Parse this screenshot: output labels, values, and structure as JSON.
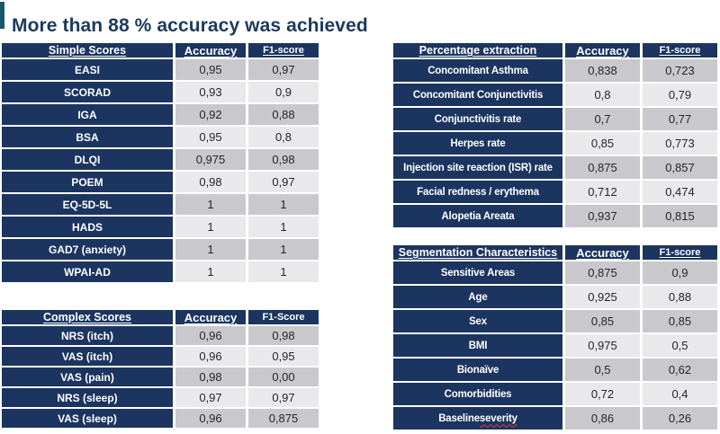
{
  "title": {
    "text": "More than 88 % accuracy was achieved"
  },
  "colors": {
    "navy": "#1c3560",
    "accent_bar": "#15586d",
    "title_text": "#1c3a5e",
    "cell_dark": "#c9c9cd",
    "cell_light": "#e9e9ec",
    "value_text": "#262626",
    "spellcheck_underline": "#e03c31"
  },
  "tables": [
    {
      "name": "Simple Scores",
      "accuracy_header": "Accuracy",
      "f1_header": "F1-score",
      "rows": [
        {
          "label": "EASI",
          "acc": "0,95",
          "f1": "0,97"
        },
        {
          "label": "SCORAD",
          "acc": "0,93",
          "f1": "0,9"
        },
        {
          "label": "IGA",
          "acc": "0,92",
          "f1": "0,88"
        },
        {
          "label": "BSA",
          "acc": "0,95",
          "f1": "0,8"
        },
        {
          "label": "DLQI",
          "acc": "0,975",
          "f1": "0,98"
        },
        {
          "label": "POEM",
          "acc": "0,98",
          "f1": "0,97"
        },
        {
          "label": "EQ-5D-5L",
          "acc": "1",
          "f1": "1"
        },
        {
          "label": "HADS",
          "acc": "1",
          "f1": "1"
        },
        {
          "label": "GAD7 (anxiety)",
          "acc": "1",
          "f1": "1"
        },
        {
          "label": "WPAI-AD",
          "acc": "1",
          "f1": "1"
        }
      ]
    },
    {
      "name": "Complex Scores",
      "accuracy_header": "Accuracy",
      "f1_header": "F1-Score",
      "rows": [
        {
          "label": "NRS (itch)",
          "acc": "0,96",
          "f1": "0,98"
        },
        {
          "label": "VAS (itch)",
          "acc": "0,96",
          "f1": "0,95"
        },
        {
          "label": "VAS (pain)",
          "acc": "0,98",
          "f1": "0,00"
        },
        {
          "label": "NRS (sleep)",
          "acc": "0,97",
          "f1": "0,97"
        },
        {
          "label": "VAS (sleep)",
          "acc": "0,96",
          "f1": "0,875"
        }
      ]
    },
    {
      "name": "Percentage extraction",
      "accuracy_header": "Accuracy",
      "f1_header": "F1-score",
      "rows": [
        {
          "label": "Concomitant Asthma",
          "acc": "0,838",
          "f1": "0,723"
        },
        {
          "label": "Concomitant Conjunctivitis",
          "acc": "0,8",
          "f1": "0,79"
        },
        {
          "label": "Conjunctivitis rate",
          "acc": "0,7",
          "f1": "0,77"
        },
        {
          "label": "Herpes rate",
          "acc": "0,85",
          "f1": "0,773"
        },
        {
          "label": "Injection site reaction (ISR) rate",
          "acc": "0,875",
          "f1": "0,857"
        },
        {
          "label": "Facial redness / erythema",
          "acc": "0,712",
          "f1": "0,474"
        },
        {
          "label": "Alopetia Areata",
          "acc": "0,937",
          "f1": "0,815"
        }
      ]
    },
    {
      "name": "Segmentation Characteristics",
      "accuracy_header": "Accuracy",
      "f1_header": "F1-score",
      "rows": [
        {
          "label": "Sensitive Areas",
          "acc": "0,875",
          "f1": "0,9"
        },
        {
          "label": "Age",
          "acc": "0,925",
          "f1": "0,88"
        },
        {
          "label": "Sex",
          "acc": "0,85",
          "f1": "0,85"
        },
        {
          "label": "BMI",
          "acc": "0,975",
          "f1": "0,5"
        },
        {
          "label": "Bionaïve",
          "acc": "0,5",
          "f1": "0,62"
        },
        {
          "label": "Comorbidities",
          "acc": "0,72",
          "f1": "0,4"
        },
        {
          "label": "Baseline severity",
          "acc": "0,86",
          "f1": "0,26",
          "squiggle": "severity"
        }
      ]
    }
  ]
}
